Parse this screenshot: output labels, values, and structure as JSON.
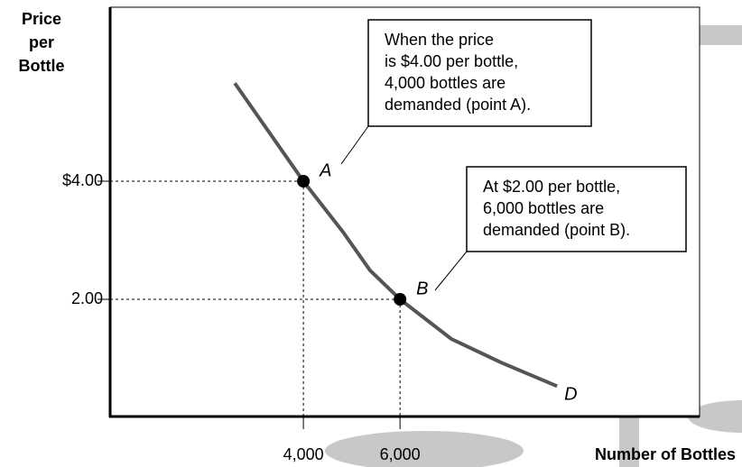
{
  "chart_data": {
    "type": "line",
    "y_label_lines": [
      "Price",
      "per",
      "Bottle"
    ],
    "x_label": "Number of Bottles",
    "xlim": [
      0,
      12200
    ],
    "ylim": [
      0,
      7
    ],
    "xticks": [
      {
        "value": 4000,
        "label": "4,000"
      },
      {
        "value": 6000,
        "label": "6,000"
      }
    ],
    "yticks": [
      {
        "value": 4,
        "label": "$4.00"
      },
      {
        "value": 2,
        "label": "2.00"
      }
    ],
    "series": [
      {
        "name": "D",
        "color": "#555555",
        "x": [
          2580,
          4000,
          4820,
          5380,
          6000,
          7060,
          8090,
          9250
        ],
        "values": [
          5.66,
          4,
          3.14,
          2.49,
          2,
          1.33,
          0.93,
          0.53
        ]
      }
    ],
    "points": [
      {
        "label": "A",
        "x": 4000,
        "y": 4
      },
      {
        "label": "B",
        "x": 6000,
        "y": 2
      }
    ],
    "annotations": [
      {
        "lines": [
          "When the price",
          "is $4.00 per bottle,",
          "4,000 bottles are",
          "demanded (point A)."
        ]
      },
      {
        "lines": [
          "At $2.00 per bottle,",
          "6,000 bottles are",
          "demanded (point B)."
        ]
      }
    ]
  }
}
